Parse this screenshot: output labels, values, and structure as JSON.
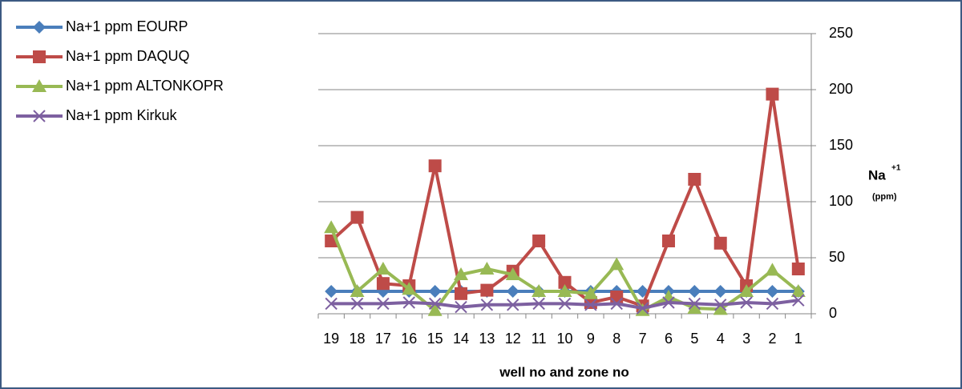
{
  "chart_data": {
    "type": "line",
    "x_label": "well no and zone no",
    "y_label": "Na",
    "y_label_sup": "+1",
    "y_label_unit": "(ppm)",
    "categories": [
      "19",
      "18",
      "17",
      "16",
      "15",
      "14",
      "13",
      "12",
      "11",
      "10",
      "9",
      "8",
      "7",
      "6",
      "5",
      "4",
      "3",
      "2",
      "1"
    ],
    "series": [
      {
        "name": "Na+1 ppm EOURP",
        "color": "#4a7ebb",
        "marker": "diamond",
        "values": [
          20,
          20,
          20,
          20,
          20,
          20,
          20,
          20,
          20,
          20,
          20,
          20,
          20,
          20,
          20,
          20,
          20,
          20,
          20
        ]
      },
      {
        "name": "Na+1 ppm DAQUQ",
        "color": "#be4b48",
        "marker": "square",
        "values": [
          65,
          86,
          27,
          25,
          132,
          18,
          21,
          38,
          65,
          28,
          10,
          15,
          7,
          65,
          120,
          63,
          25,
          196,
          40
        ]
      },
      {
        "name": "Na+1 ppm ALTONKOPR",
        "color": "#98b954",
        "marker": "triangle",
        "values": [
          77,
          20,
          40,
          22,
          3,
          35,
          40,
          35,
          20,
          20,
          18,
          44,
          3,
          15,
          5,
          4,
          20,
          39,
          20
        ]
      },
      {
        "name": "Na+1 ppm Kirkuk",
        "color": "#7d60a0",
        "marker": "x",
        "values": [
          9,
          9,
          9,
          10,
          9,
          6,
          8,
          8,
          9,
          9,
          8,
          9,
          5,
          10,
          9,
          8,
          10,
          9,
          12
        ]
      }
    ],
    "ylim": [
      0,
      250
    ],
    "yticks": [
      0,
      50,
      100,
      150,
      200,
      250
    ],
    "grid": true,
    "legend": "top-left"
  }
}
